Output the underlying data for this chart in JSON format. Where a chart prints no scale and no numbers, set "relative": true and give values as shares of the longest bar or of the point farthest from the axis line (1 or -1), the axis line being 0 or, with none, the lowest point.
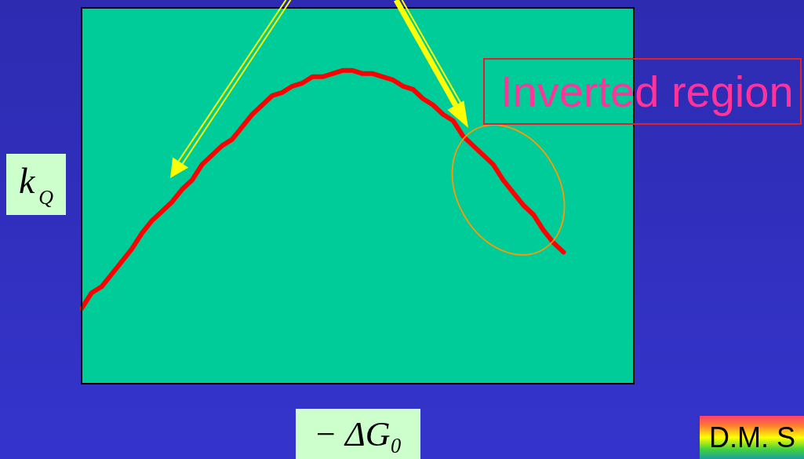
{
  "chart_data": {
    "type": "line",
    "relative": true,
    "xlabel": "− ΔG₀",
    "ylabel": "k$_{Q}$",
    "annotations": [
      "Inverted region",
      "D.M. S"
    ],
    "categories": [
      null,
      null,
      null,
      null,
      null,
      null,
      null,
      null,
      null,
      null,
      null,
      null,
      null,
      null,
      null,
      null,
      null,
      null,
      null,
      null,
      null,
      null,
      null,
      null,
      null,
      null,
      null,
      null,
      null,
      null,
      null,
      null,
      null,
      null,
      null,
      null,
      null,
      null,
      null,
      null,
      null,
      null,
      null,
      null,
      null,
      null,
      null,
      null,
      null,
      null,
      null,
      null,
      null,
      null,
      null,
      null
    ],
    "color": "#ff0000",
    "values": [
      0.24,
      0.29,
      0.31,
      0.35,
      0.39,
      0.43,
      0.48,
      0.52,
      0.55,
      0.58,
      0.62,
      0.65,
      0.7,
      0.73,
      0.76,
      0.78,
      0.82,
      0.86,
      0.89,
      0.92,
      0.93,
      0.95,
      0.96,
      0.98,
      0.98,
      0.99,
      1,
      1,
      0.99,
      0.99,
      0.98,
      0.97,
      0.95,
      0.94,
      0.91,
      0.89,
      0.86,
      0.84,
      0.79,
      0.76,
      0.73,
      0.7,
      0.65,
      0.61,
      0.57,
      0.54,
      0.49,
      0.45,
      0.42,
      null,
      null,
      null,
      null,
      null,
      null,
      null
    ]
  }
}
